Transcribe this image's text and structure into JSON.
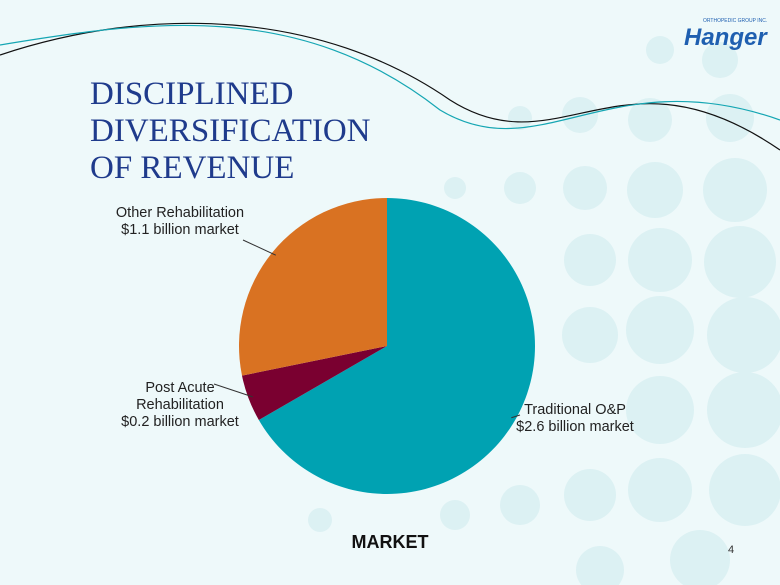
{
  "brand": {
    "name": "Hanger",
    "tagline": "ORTHOPEDIC GROUP INC."
  },
  "page_number": "4",
  "chart_data": {
    "type": "pie",
    "title": "DISCIPLINED DIVERSIFICATION OF REVENUE",
    "label": "MARKET",
    "categories": [
      "Traditional O&P",
      "Post Acute Rehabilitation",
      "Other Rehabilitation"
    ],
    "values": [
      2.6,
      0.2,
      1.1
    ],
    "value_labels": [
      "$2.6 billion market",
      "$0.2 billion market",
      "$1.1 billion market"
    ],
    "colors": [
      "#00a2b2",
      "#7a0030",
      "#d97222"
    ]
  }
}
